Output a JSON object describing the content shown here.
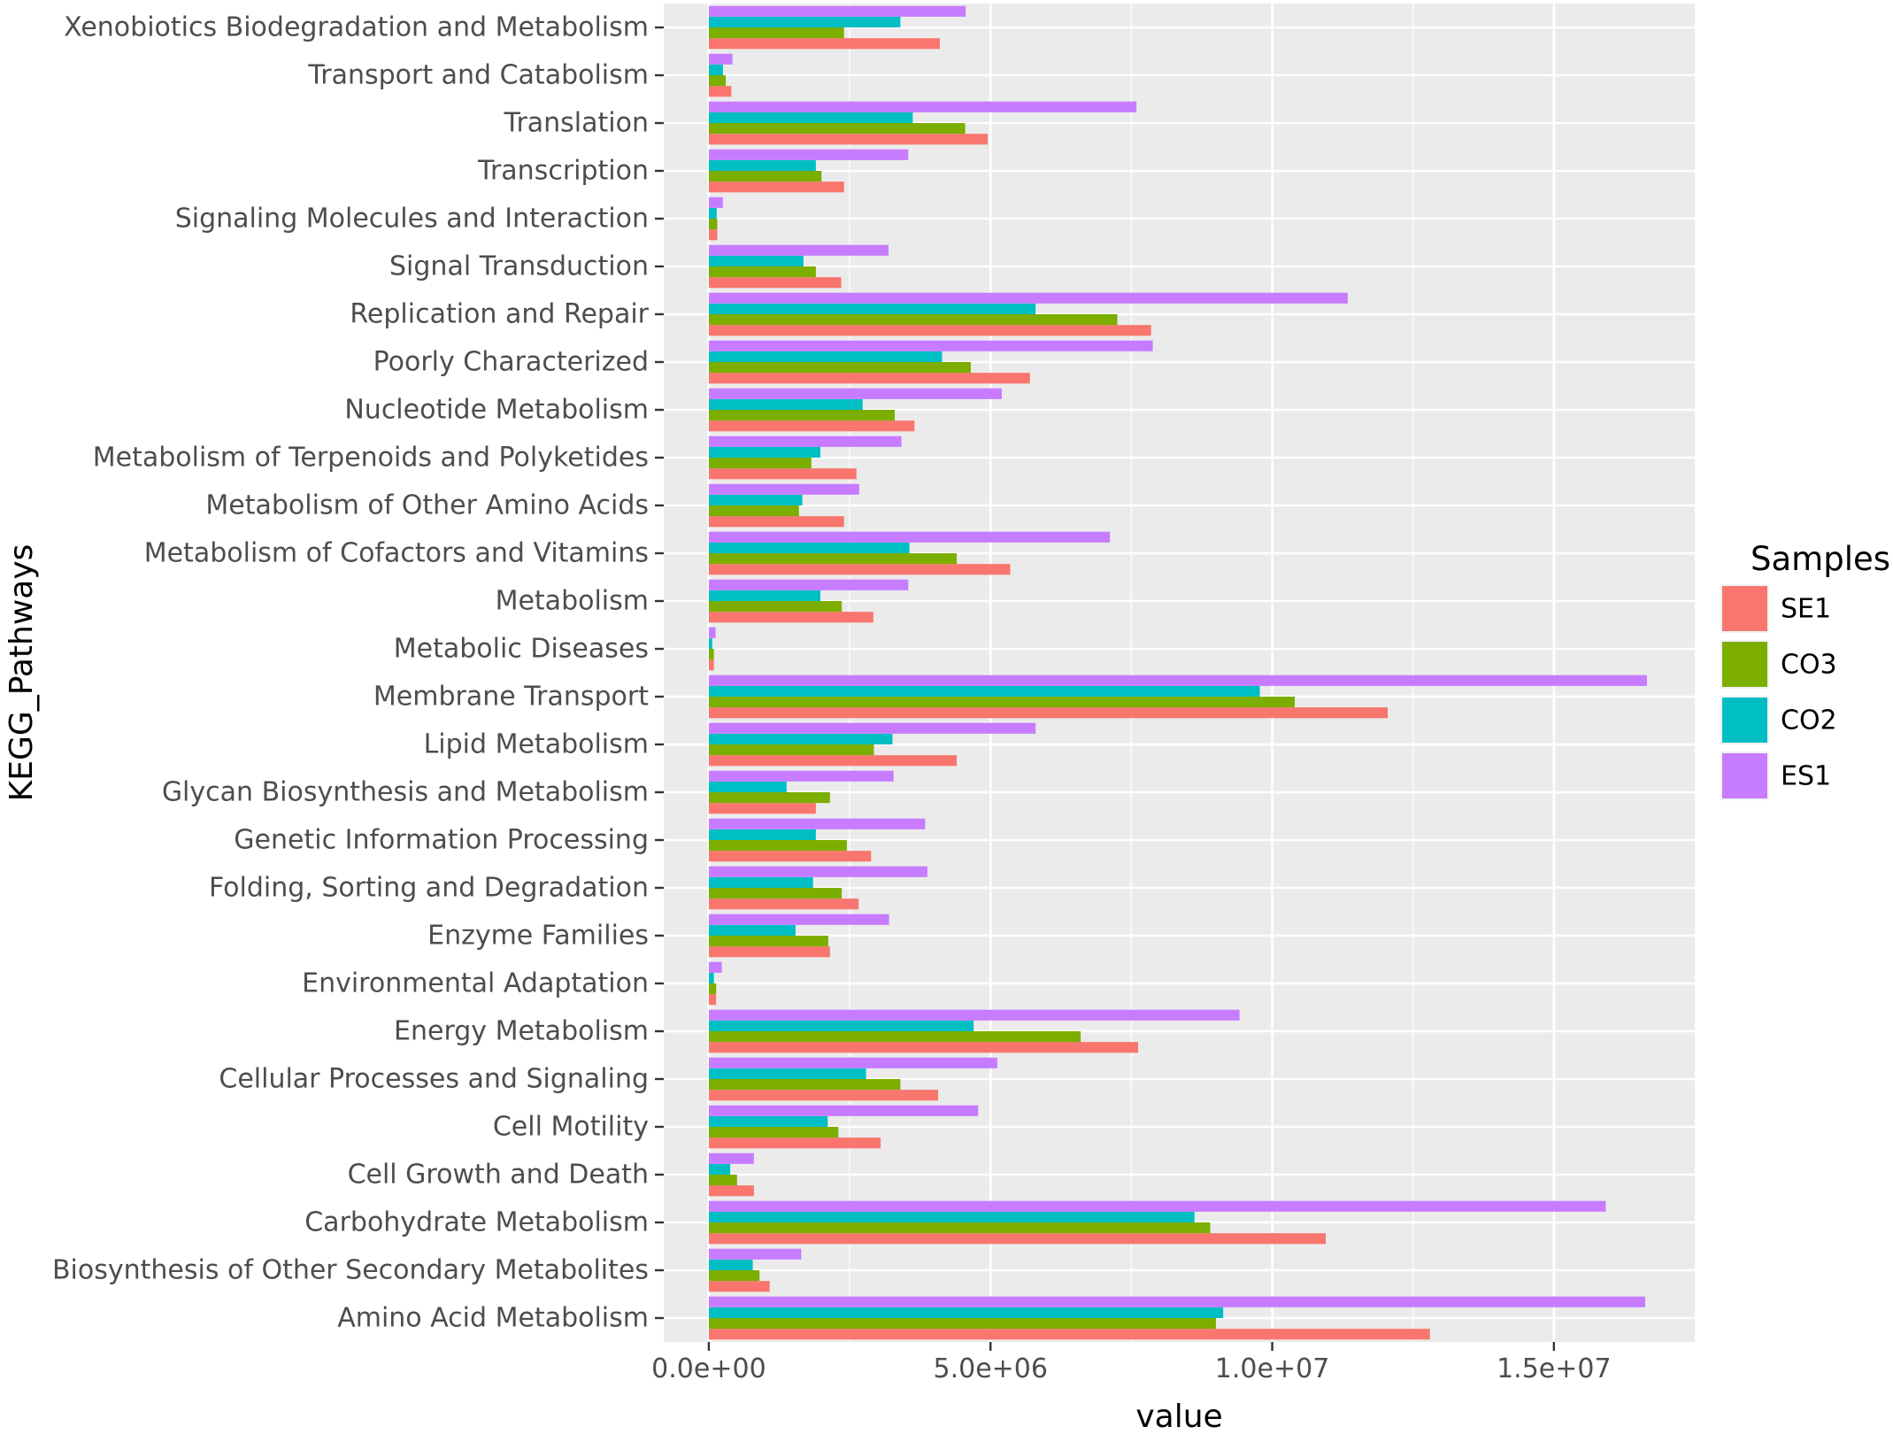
{
  "chart_data": {
    "type": "bar",
    "orientation": "horizontal",
    "xlabel": "value",
    "ylabel": "KEGG_Pathways",
    "xlim": [
      -800000,
      17500000
    ],
    "xticks": [
      {
        "value": 0,
        "label": "0.0e+00"
      },
      {
        "value": 5000000,
        "label": "5.0e+06"
      },
      {
        "value": 10000000,
        "label": "1.0e+07"
      },
      {
        "value": 15000000,
        "label": "1.5e+07"
      }
    ],
    "grid": true,
    "legend": {
      "title": "Samples",
      "position": "right"
    },
    "categories": [
      "Xenobiotics Biodegradation and Metabolism",
      "Transport and Catabolism",
      "Translation",
      "Transcription",
      "Signaling Molecules and Interaction",
      "Signal Transduction",
      "Replication and Repair",
      "Poorly Characterized",
      "Nucleotide Metabolism",
      "Metabolism of Terpenoids and Polyketides",
      "Metabolism of Other Amino Acids",
      "Metabolism of Cofactors and Vitamins",
      "Metabolism",
      "Metabolic Diseases",
      "Membrane Transport",
      "Lipid Metabolism",
      "Glycan Biosynthesis and Metabolism",
      "Genetic Information Processing",
      "Folding, Sorting and Degradation",
      "Enzyme Families",
      "Environmental Adaptation",
      "Energy Metabolism",
      "Cellular Processes and Signaling",
      "Cell Motility",
      "Cell Growth and Death",
      "Carbohydrate Metabolism",
      "Biosynthesis of Other Secondary Metabolites",
      "Amino Acid Metabolism"
    ],
    "series": [
      {
        "name": "SE1",
        "color": "#F8766D",
        "values": [
          4100000,
          400000,
          4950000,
          2400000,
          150000,
          2350000,
          7850000,
          5700000,
          3650000,
          2620000,
          2400000,
          5350000,
          2920000,
          90000,
          12050000,
          4400000,
          1900000,
          2880000,
          2660000,
          2150000,
          130000,
          7620000,
          4070000,
          3050000,
          800000,
          10950000,
          1080000,
          12800000
        ]
      },
      {
        "name": "CO3",
        "color": "#7CAE00",
        "values": [
          2400000,
          300000,
          4550000,
          2000000,
          150000,
          1900000,
          7250000,
          4650000,
          3300000,
          1820000,
          1600000,
          4400000,
          2360000,
          90000,
          10400000,
          2930000,
          2150000,
          2450000,
          2360000,
          2120000,
          130000,
          6600000,
          3400000,
          2300000,
          500000,
          8900000,
          900000,
          9000000
        ]
      },
      {
        "name": "CO2",
        "color": "#00BFC4",
        "values": [
          3400000,
          250000,
          3620000,
          1900000,
          140000,
          1680000,
          5800000,
          4140000,
          2730000,
          1980000,
          1660000,
          3560000,
          1980000,
          60000,
          9780000,
          3260000,
          1380000,
          1900000,
          1850000,
          1540000,
          90000,
          4700000,
          2790000,
          2110000,
          380000,
          8620000,
          780000,
          9130000
        ]
      },
      {
        "name": "ES1",
        "color": "#C77CFF",
        "values": [
          4560000,
          420000,
          7590000,
          3540000,
          250000,
          3190000,
          11340000,
          7880000,
          5200000,
          3420000,
          2670000,
          7120000,
          3540000,
          120000,
          16650000,
          5800000,
          3280000,
          3840000,
          3880000,
          3200000,
          230000,
          9420000,
          5120000,
          4780000,
          800000,
          15920000,
          1640000,
          16620000
        ]
      }
    ]
  }
}
